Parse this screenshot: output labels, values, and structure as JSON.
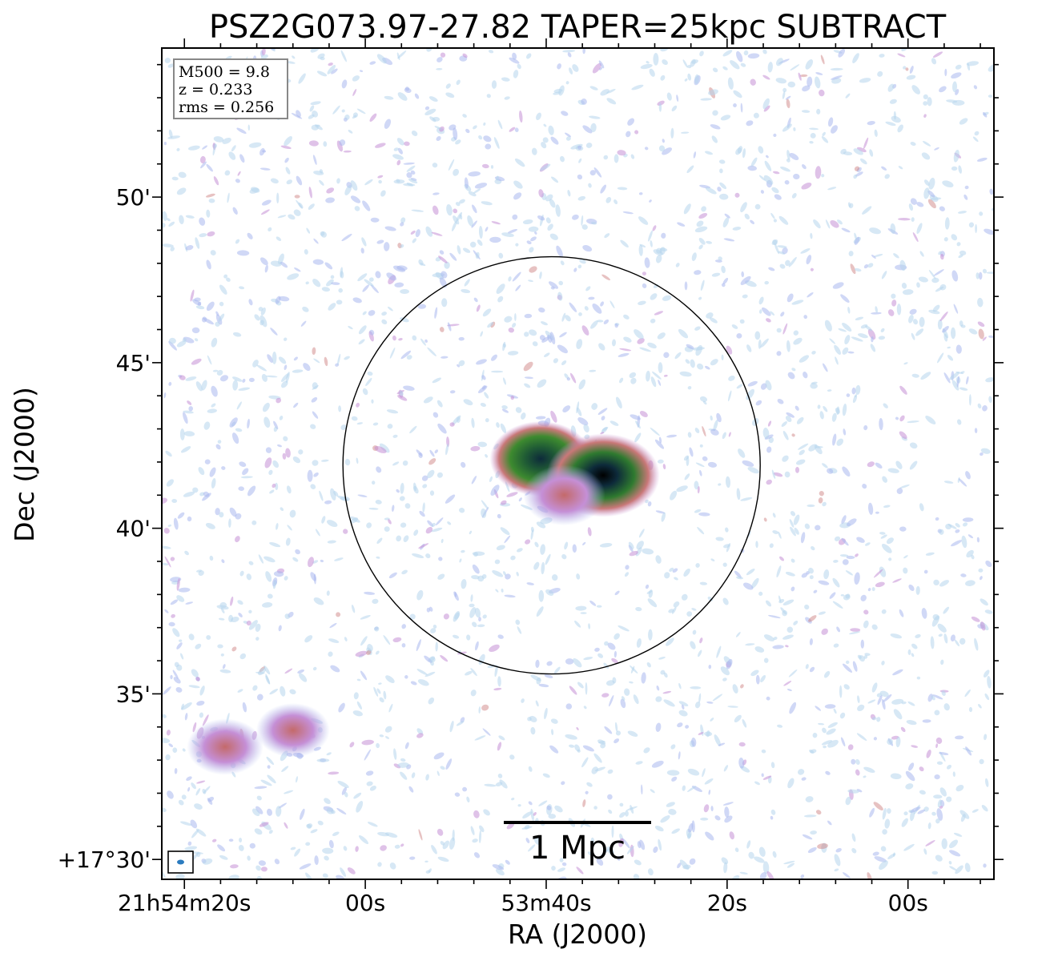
{
  "chart_data": {
    "type": "heatmap",
    "title": "PSZ2G073.97-27.82 TAPER=25kpc SUBTRACT",
    "xlabel": "RA (J2000)",
    "ylabel": "Dec (J2000)",
    "x_tick_labels": [
      "21h54m20s",
      "00s",
      "53m40s",
      "20s",
      "00s"
    ],
    "y_tick_labels": [
      "+17°30'",
      "35'",
      "40'",
      "45'",
      "50'"
    ],
    "x_ticks_ra_sec": [
      1460,
      1440,
      1420,
      1400,
      1380
    ],
    "y_ticks_dec_arcmin": [
      30,
      35,
      40,
      45,
      50
    ],
    "ra_range_sec": [
      1462.5,
      1370.5
    ],
    "dec_range_arcmin": [
      29.4,
      54.5
    ],
    "info_box": {
      "line1": "M500 = 9.8",
      "line2": "z = 0.233",
      "line3": "rms = 0.256"
    },
    "scale_bar_label": "1 Mpc",
    "circle": {
      "center_ra_sec": 1419.4,
      "center_dec_arcmin": 41.9,
      "radius_arcmin": 6.3
    },
    "sources": [
      {
        "name": "central-east",
        "ra_sec": 1420.6,
        "dec_arcmin": 42.1,
        "peak": 0.8
      },
      {
        "name": "central-west",
        "ra_sec": 1413.7,
        "dec_arcmin": 41.6,
        "peak": 1.0
      },
      {
        "name": "central-bridge",
        "ra_sec": 1418.0,
        "dec_arcmin": 41.0,
        "peak": 0.45
      },
      {
        "name": "south-west-1",
        "ra_sec": 1455.5,
        "dec_arcmin": 33.4,
        "peak": 0.35
      },
      {
        "name": "south-west-2",
        "ra_sec": 1448.0,
        "dec_arcmin": 33.9,
        "peak": 0.3
      }
    ],
    "grid": false,
    "colormap": [
      "#ffffff",
      "#b7d5ec",
      "#a9b8ee",
      "#c58fd6",
      "#c97878",
      "#3d8a2f",
      "#0d2a3a",
      "#000000"
    ]
  }
}
